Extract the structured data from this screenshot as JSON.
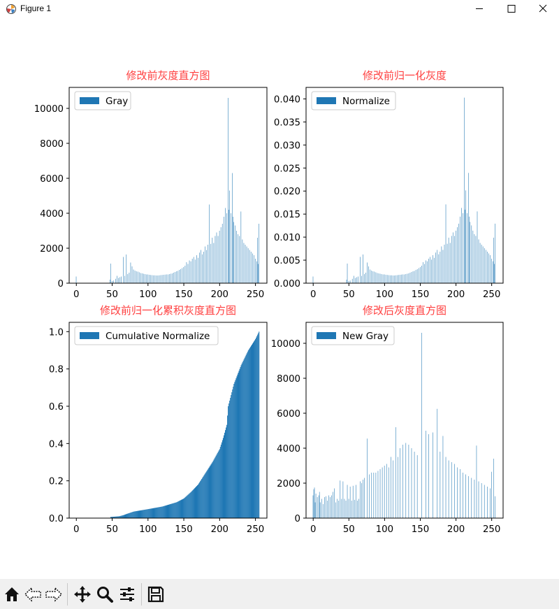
{
  "window": {
    "title": "Figure 1",
    "minimize_glyph": "—",
    "maximize_glyph": "☐",
    "close_glyph": "✕"
  },
  "toolbar": {
    "buttons": [
      {
        "icon": "home-icon"
      },
      {
        "icon": "back-arrow-icon"
      },
      {
        "icon": "forward-arrow-icon"
      },
      {
        "icon": "pan-move-icon"
      },
      {
        "icon": "zoom-magnifier-icon"
      },
      {
        "icon": "configure-subplots-icon"
      },
      {
        "icon": "save-floppy-icon"
      }
    ]
  },
  "colors": {
    "bar": "#1f77b4",
    "title": "#ff4040",
    "toolbar_bg": "#f0f0f0"
  },
  "chart_data": [
    {
      "type": "bar",
      "title": "修改前灰度直方图",
      "legend": "Gray",
      "legend_loc": "upper left",
      "xlim": [
        -10,
        266
      ],
      "ylim": [
        0,
        11200
      ],
      "xticks": [
        0,
        50,
        100,
        150,
        200,
        250
      ],
      "yticks": [
        0,
        2000,
        4000,
        6000,
        8000,
        10000
      ],
      "ytick_labels": [
        "0",
        "2000",
        "4000",
        "6000",
        "8000",
        "10000"
      ],
      "bins": [
        {
          "x": 0,
          "v": 380
        },
        {
          "x": 47,
          "v": 200
        },
        {
          "x": 48,
          "v": 1120
        },
        {
          "x": 50,
          "v": 120
        },
        {
          "x": 52,
          "v": 150
        },
        {
          "x": 55,
          "v": 250
        },
        {
          "x": 57,
          "v": 420
        },
        {
          "x": 59,
          "v": 300
        },
        {
          "x": 61,
          "v": 340
        },
        {
          "x": 63,
          "v": 380
        },
        {
          "x": 66,
          "v": 1500
        },
        {
          "x": 68,
          "v": 420
        },
        {
          "x": 70,
          "v": 1640
        },
        {
          "x": 72,
          "v": 520
        },
        {
          "x": 74,
          "v": 600
        },
        {
          "x": 76,
          "v": 1180
        },
        {
          "x": 78,
          "v": 960
        },
        {
          "x": 80,
          "v": 780
        },
        {
          "x": 82,
          "v": 720
        },
        {
          "x": 84,
          "v": 680
        },
        {
          "x": 86,
          "v": 660
        },
        {
          "x": 88,
          "v": 620
        },
        {
          "x": 90,
          "v": 580
        },
        {
          "x": 92,
          "v": 560
        },
        {
          "x": 94,
          "v": 540
        },
        {
          "x": 96,
          "v": 520
        },
        {
          "x": 98,
          "v": 500
        },
        {
          "x": 100,
          "v": 500
        },
        {
          "x": 102,
          "v": 480
        },
        {
          "x": 104,
          "v": 470
        },
        {
          "x": 106,
          "v": 460
        },
        {
          "x": 108,
          "v": 450
        },
        {
          "x": 110,
          "v": 450
        },
        {
          "x": 112,
          "v": 440
        },
        {
          "x": 114,
          "v": 440
        },
        {
          "x": 116,
          "v": 450
        },
        {
          "x": 118,
          "v": 460
        },
        {
          "x": 120,
          "v": 470
        },
        {
          "x": 122,
          "v": 480
        },
        {
          "x": 124,
          "v": 490
        },
        {
          "x": 126,
          "v": 500
        },
        {
          "x": 128,
          "v": 500
        },
        {
          "x": 130,
          "v": 520
        },
        {
          "x": 132,
          "v": 540
        },
        {
          "x": 134,
          "v": 560
        },
        {
          "x": 136,
          "v": 600
        },
        {
          "x": 138,
          "v": 640
        },
        {
          "x": 140,
          "v": 680
        },
        {
          "x": 142,
          "v": 700
        },
        {
          "x": 144,
          "v": 760
        },
        {
          "x": 146,
          "v": 800
        },
        {
          "x": 148,
          "v": 860
        },
        {
          "x": 150,
          "v": 920
        },
        {
          "x": 152,
          "v": 1000
        },
        {
          "x": 154,
          "v": 1200
        },
        {
          "x": 156,
          "v": 1100
        },
        {
          "x": 158,
          "v": 1300
        },
        {
          "x": 160,
          "v": 1250
        },
        {
          "x": 162,
          "v": 1400
        },
        {
          "x": 164,
          "v": 1500
        },
        {
          "x": 166,
          "v": 1350
        },
        {
          "x": 168,
          "v": 1600
        },
        {
          "x": 170,
          "v": 1450
        },
        {
          "x": 172,
          "v": 1750
        },
        {
          "x": 174,
          "v": 1900
        },
        {
          "x": 176,
          "v": 1650
        },
        {
          "x": 178,
          "v": 1800
        },
        {
          "x": 180,
          "v": 2100
        },
        {
          "x": 182,
          "v": 1900
        },
        {
          "x": 184,
          "v": 2200
        },
        {
          "x": 186,
          "v": 4500
        },
        {
          "x": 188,
          "v": 2250
        },
        {
          "x": 190,
          "v": 2600
        },
        {
          "x": 192,
          "v": 2300
        },
        {
          "x": 194,
          "v": 2700
        },
        {
          "x": 196,
          "v": 2900
        },
        {
          "x": 198,
          "v": 2700
        },
        {
          "x": 200,
          "v": 3000
        },
        {
          "x": 202,
          "v": 3200
        },
        {
          "x": 204,
          "v": 3400
        },
        {
          "x": 206,
          "v": 3800
        },
        {
          "x": 208,
          "v": 4300
        },
        {
          "x": 210,
          "v": 4000
        },
        {
          "x": 212,
          "v": 10600
        },
        {
          "x": 213,
          "v": 4200
        },
        {
          "x": 214,
          "v": 5300
        },
        {
          "x": 216,
          "v": 4000
        },
        {
          "x": 218,
          "v": 6300
        },
        {
          "x": 219,
          "v": 3800
        },
        {
          "x": 220,
          "v": 3500
        },
        {
          "x": 222,
          "v": 3300
        },
        {
          "x": 224,
          "v": 3000
        },
        {
          "x": 226,
          "v": 2800
        },
        {
          "x": 228,
          "v": 2700
        },
        {
          "x": 230,
          "v": 4100
        },
        {
          "x": 232,
          "v": 2500
        },
        {
          "x": 234,
          "v": 2300
        },
        {
          "x": 236,
          "v": 2200
        },
        {
          "x": 238,
          "v": 2100
        },
        {
          "x": 240,
          "v": 2000
        },
        {
          "x": 242,
          "v": 1900
        },
        {
          "x": 244,
          "v": 1800
        },
        {
          "x": 246,
          "v": 1700
        },
        {
          "x": 248,
          "v": 1600
        },
        {
          "x": 250,
          "v": 1400
        },
        {
          "x": 252,
          "v": 1250
        },
        {
          "x": 253,
          "v": 2600
        },
        {
          "x": 254,
          "v": 1100
        },
        {
          "x": 255,
          "v": 3400
        }
      ]
    },
    {
      "type": "bar",
      "title": "修改前归一化灰度",
      "legend": "Normalize",
      "legend_loc": "upper left",
      "xlim": [
        -10,
        266
      ],
      "ylim": [
        0,
        0.0425
      ],
      "xticks": [
        0,
        50,
        100,
        150,
        200,
        250
      ],
      "yticks": [
        0,
        0.005,
        0.01,
        0.015,
        0.02,
        0.025,
        0.03,
        0.035,
        0.04
      ],
      "ytick_labels": [
        "0.000",
        "0.005",
        "0.010",
        "0.015",
        "0.020",
        "0.025",
        "0.030",
        "0.035",
        "0.040"
      ],
      "bins_from_chart": 0,
      "scale": 3.8e-06
    },
    {
      "type": "bar",
      "title": "修改前归一化累积灰度直方图",
      "legend": "Cumulative Normalize",
      "legend_loc": "upper left",
      "xlim": [
        -10,
        266
      ],
      "ylim": [
        0,
        1.05
      ],
      "xticks": [
        0,
        50,
        100,
        150,
        200,
        250
      ],
      "yticks": [
        0,
        0.2,
        0.4,
        0.6,
        0.8,
        1.0
      ],
      "ytick_labels": [
        "0.0",
        "0.2",
        "0.4",
        "0.6",
        "0.8",
        "1.0"
      ],
      "cumulative_points": [
        {
          "x": 0,
          "v": 0.002
        },
        {
          "x": 47,
          "v": 0.002
        },
        {
          "x": 48,
          "v": 0.006
        },
        {
          "x": 60,
          "v": 0.01
        },
        {
          "x": 66,
          "v": 0.016
        },
        {
          "x": 70,
          "v": 0.022
        },
        {
          "x": 80,
          "v": 0.035
        },
        {
          "x": 100,
          "v": 0.048
        },
        {
          "x": 120,
          "v": 0.062
        },
        {
          "x": 140,
          "v": 0.085
        },
        {
          "x": 150,
          "v": 0.105
        },
        {
          "x": 160,
          "v": 0.14
        },
        {
          "x": 170,
          "v": 0.18
        },
        {
          "x": 180,
          "v": 0.24
        },
        {
          "x": 190,
          "v": 0.3
        },
        {
          "x": 200,
          "v": 0.37
        },
        {
          "x": 205,
          "v": 0.43
        },
        {
          "x": 210,
          "v": 0.5
        },
        {
          "x": 212,
          "v": 0.6
        },
        {
          "x": 220,
          "v": 0.72
        },
        {
          "x": 230,
          "v": 0.82
        },
        {
          "x": 240,
          "v": 0.9
        },
        {
          "x": 250,
          "v": 0.96
        },
        {
          "x": 255,
          "v": 1.0
        }
      ]
    },
    {
      "type": "bar",
      "title": "修改后灰度直方图",
      "legend": "New Gray",
      "legend_loc": "upper left",
      "xlim": [
        -10,
        266
      ],
      "ylim": [
        0,
        11200
      ],
      "xticks": [
        0,
        50,
        100,
        150,
        200,
        250
      ],
      "yticks": [
        0,
        2000,
        4000,
        6000,
        8000,
        10000
      ],
      "ytick_labels": [
        "0",
        "2000",
        "4000",
        "6000",
        "8000",
        "10000"
      ],
      "bins": [
        {
          "x": 0,
          "v": 1300
        },
        {
          "x": 1,
          "v": 1650
        },
        {
          "x": 2,
          "v": 1750
        },
        {
          "x": 3,
          "v": 900
        },
        {
          "x": 4,
          "v": 1400
        },
        {
          "x": 6,
          "v": 1200
        },
        {
          "x": 8,
          "v": 1300
        },
        {
          "x": 9,
          "v": 1500
        },
        {
          "x": 10,
          "v": 900
        },
        {
          "x": 12,
          "v": 1100
        },
        {
          "x": 14,
          "v": 800
        },
        {
          "x": 16,
          "v": 1200
        },
        {
          "x": 18,
          "v": 1250
        },
        {
          "x": 20,
          "v": 1000
        },
        {
          "x": 22,
          "v": 1300
        },
        {
          "x": 24,
          "v": 1200
        },
        {
          "x": 26,
          "v": 1300
        },
        {
          "x": 28,
          "v": 1500
        },
        {
          "x": 30,
          "v": 1700
        },
        {
          "x": 32,
          "v": 900
        },
        {
          "x": 34,
          "v": 1100
        },
        {
          "x": 36,
          "v": 1000
        },
        {
          "x": 38,
          "v": 2150
        },
        {
          "x": 40,
          "v": 1100
        },
        {
          "x": 42,
          "v": 2100
        },
        {
          "x": 44,
          "v": 1100
        },
        {
          "x": 46,
          "v": 1000
        },
        {
          "x": 48,
          "v": 1900
        },
        {
          "x": 50,
          "v": 1100
        },
        {
          "x": 52,
          "v": 1800
        },
        {
          "x": 54,
          "v": 1000
        },
        {
          "x": 56,
          "v": 1850
        },
        {
          "x": 58,
          "v": 1050
        },
        {
          "x": 60,
          "v": 1900
        },
        {
          "x": 62,
          "v": 1000
        },
        {
          "x": 64,
          "v": 1100
        },
        {
          "x": 66,
          "v": 2100
        },
        {
          "x": 68,
          "v": 2000
        },
        {
          "x": 70,
          "v": 2200
        },
        {
          "x": 72,
          "v": 2300
        },
        {
          "x": 76,
          "v": 4550
        },
        {
          "x": 79,
          "v": 2500
        },
        {
          "x": 82,
          "v": 2600
        },
        {
          "x": 85,
          "v": 2600
        },
        {
          "x": 88,
          "v": 2600
        },
        {
          "x": 91,
          "v": 2700
        },
        {
          "x": 94,
          "v": 2800
        },
        {
          "x": 97,
          "v": 2900
        },
        {
          "x": 100,
          "v": 3000
        },
        {
          "x": 103,
          "v": 3100
        },
        {
          "x": 106,
          "v": 2900
        },
        {
          "x": 109,
          "v": 3500
        },
        {
          "x": 112,
          "v": 3300
        },
        {
          "x": 116,
          "v": 5200
        },
        {
          "x": 119,
          "v": 3500
        },
        {
          "x": 122,
          "v": 4000
        },
        {
          "x": 126,
          "v": 4200
        },
        {
          "x": 130,
          "v": 4300
        },
        {
          "x": 134,
          "v": 4200
        },
        {
          "x": 138,
          "v": 4000
        },
        {
          "x": 142,
          "v": 3800
        },
        {
          "x": 146,
          "v": 3600
        },
        {
          "x": 152,
          "v": 10600
        },
        {
          "x": 158,
          "v": 5000
        },
        {
          "x": 162,
          "v": 4800
        },
        {
          "x": 168,
          "v": 4900
        },
        {
          "x": 174,
          "v": 6250
        },
        {
          "x": 178,
          "v": 3800
        },
        {
          "x": 182,
          "v": 4700
        },
        {
          "x": 186,
          "v": 3500
        },
        {
          "x": 190,
          "v": 3300
        },
        {
          "x": 194,
          "v": 3200
        },
        {
          "x": 198,
          "v": 3100
        },
        {
          "x": 202,
          "v": 2900
        },
        {
          "x": 206,
          "v": 2800
        },
        {
          "x": 210,
          "v": 2600
        },
        {
          "x": 214,
          "v": 2500
        },
        {
          "x": 218,
          "v": 2400
        },
        {
          "x": 222,
          "v": 2300
        },
        {
          "x": 226,
          "v": 2200
        },
        {
          "x": 229,
          "v": 4150
        },
        {
          "x": 232,
          "v": 2100
        },
        {
          "x": 236,
          "v": 2000
        },
        {
          "x": 240,
          "v": 1900
        },
        {
          "x": 244,
          "v": 1800
        },
        {
          "x": 248,
          "v": 1700
        },
        {
          "x": 250,
          "v": 2650
        },
        {
          "x": 253,
          "v": 3400
        },
        {
          "x": 255,
          "v": 1250
        }
      ]
    }
  ]
}
